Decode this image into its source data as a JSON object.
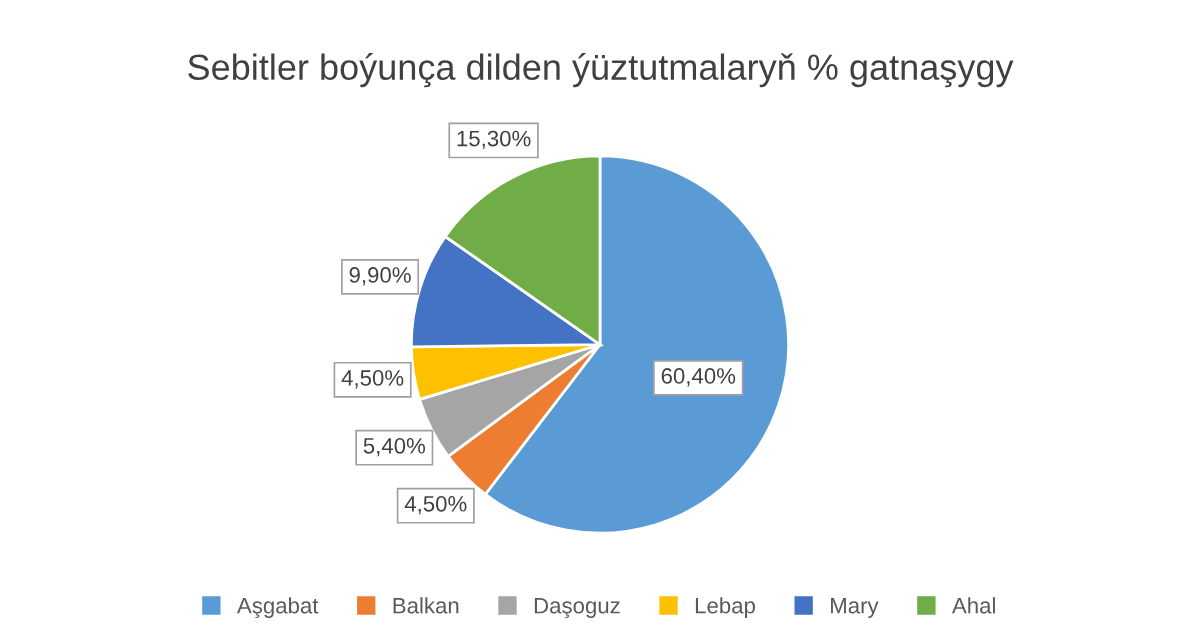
{
  "chart_data": {
    "type": "pie",
    "title": "Sebitler boýunça dilden ýüztutmalaryň % gatnaşygy",
    "categories": [
      "Aşgabat",
      "Balkan",
      "Daşoguz",
      "Lebap",
      "Mary",
      "Ahal"
    ],
    "values": [
      60.4,
      4.5,
      5.4,
      4.5,
      9.9,
      15.3
    ],
    "colors": [
      "#5b9bd5",
      "#ed7d31",
      "#a5a5a5",
      "#ffc000",
      "#4472c4",
      "#70ad47"
    ],
    "value_labels": [
      "60,40%",
      "4,50%",
      "5,40%",
      "4,50%",
      "9,90%",
      "15,30%"
    ],
    "legend": "bottom"
  }
}
